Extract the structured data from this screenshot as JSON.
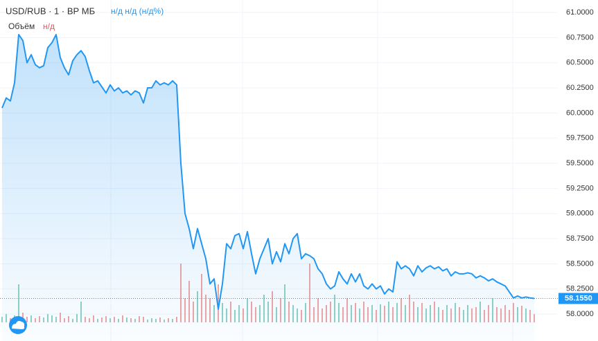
{
  "chart_data": {
    "type": "area",
    "symbol": "USD/RUB · 1 · ВР МБ",
    "change": "н/д н/д (н/д%)",
    "volume_label": "Объём",
    "volume_value": "н/д",
    "color": "#2196f3",
    "values": [
      60.05,
      60.15,
      60.12,
      60.3,
      60.78,
      60.72,
      60.5,
      60.58,
      60.48,
      60.45,
      60.47,
      60.65,
      60.7,
      60.78,
      60.55,
      60.45,
      60.38,
      60.52,
      60.58,
      60.62,
      60.56,
      60.42,
      60.3,
      60.32,
      60.26,
      60.2,
      60.28,
      60.22,
      60.25,
      60.2,
      60.22,
      60.18,
      60.22,
      60.2,
      60.1,
      60.25,
      60.25,
      60.32,
      60.28,
      60.3,
      60.28,
      60.32,
      60.28,
      59.5,
      59.0,
      58.85,
      58.65,
      58.85,
      58.7,
      58.55,
      58.3,
      58.35,
      58.05,
      58.3,
      58.7,
      58.65,
      58.78,
      58.8,
      58.65,
      58.82,
      58.6,
      58.4,
      58.55,
      58.65,
      58.75,
      58.5,
      58.62,
      58.52,
      58.7,
      58.6,
      58.75,
      58.8,
      58.55,
      58.6,
      58.58,
      58.55,
      58.45,
      58.4,
      58.3,
      58.25,
      58.28,
      58.42,
      58.35,
      58.3,
      58.4,
      58.32,
      58.4,
      58.28,
      58.25,
      58.3,
      58.25,
      58.28,
      58.2,
      58.25,
      58.22,
      58.52,
      58.45,
      58.48,
      58.45,
      58.38,
      58.48,
      58.42,
      58.46,
      58.48,
      58.45,
      58.47,
      58.43,
      58.45,
      58.38,
      58.42,
      58.4,
      58.4,
      58.41,
      58.4,
      58.36,
      58.38,
      58.36,
      58.33,
      58.35,
      58.32,
      58.3,
      58.28,
      58.22,
      58.16,
      58.18,
      58.16,
      58.17,
      58.16,
      58.155
    ],
    "ylim": [
      57.732,
      61.124
    ],
    "yticks": [
      {
        "value": 61,
        "label": "61.0000"
      },
      {
        "value": 60.75,
        "label": "60.7500"
      },
      {
        "value": 60.5,
        "label": "60.5000"
      },
      {
        "value": 60.25,
        "label": "60.2500"
      },
      {
        "value": 60,
        "label": "60.0000"
      },
      {
        "value": 59.75,
        "label": "59.7500"
      },
      {
        "value": 59.5,
        "label": "59.5000"
      },
      {
        "value": 59.25,
        "label": "59.2500"
      },
      {
        "value": 59,
        "label": "59.0000"
      },
      {
        "value": 58.75,
        "label": "58.7500"
      },
      {
        "value": 58.5,
        "label": "58.5000"
      },
      {
        "value": 58.25,
        "label": "58.2500"
      },
      {
        "value": 58,
        "label": "58.0000"
      }
    ],
    "grid": true,
    "last_price": {
      "value": 58.155,
      "label": "58.1550"
    },
    "volume": {
      "ylim": [
        0,
        100
      ],
      "up_color": "#8fd1c5",
      "down_color": "#f1a4a4",
      "values": [
        8,
        12,
        6,
        10,
        55,
        14,
        8,
        10,
        6,
        9,
        7,
        12,
        10,
        8,
        14,
        6,
        9,
        5,
        12,
        30,
        8,
        6,
        10,
        5,
        7,
        9,
        6,
        8,
        5,
        10,
        7,
        6,
        5,
        9,
        8,
        4,
        6,
        5,
        7,
        4,
        6,
        5,
        8,
        85,
        35,
        60,
        30,
        45,
        70,
        40,
        35,
        25,
        55,
        28,
        20,
        30,
        18,
        25,
        20,
        35,
        30,
        22,
        25,
        40,
        30,
        45,
        22,
        35,
        55,
        30,
        25,
        20,
        18,
        28,
        85,
        22,
        35,
        20,
        25,
        30,
        40,
        28,
        22,
        35,
        25,
        28,
        20,
        30,
        22,
        25,
        18,
        26,
        24,
        30,
        22,
        28,
        35,
        25,
        40,
        30,
        22,
        28,
        20,
        25,
        30,
        22,
        18,
        25,
        20,
        28,
        22,
        18,
        25,
        20,
        22,
        30,
        18,
        25,
        35,
        22,
        20,
        25,
        18,
        28,
        22,
        24,
        20,
        18,
        12
      ]
    }
  }
}
